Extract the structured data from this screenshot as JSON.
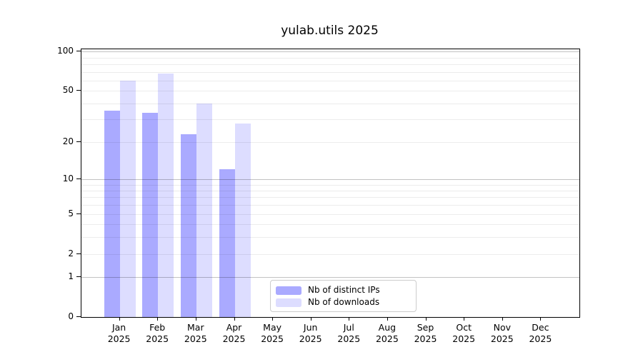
{
  "title": "yulab.utils 2025",
  "chart_data": {
    "type": "bar",
    "title": "yulab.utils 2025",
    "categories": [
      "Jan",
      "Feb",
      "Mar",
      "Apr",
      "May",
      "Jun",
      "Jul",
      "Aug",
      "Sep",
      "Oct",
      "Nov",
      "Dec"
    ],
    "year_label": "2025",
    "series": [
      {
        "name": "Nb of distinct IPs",
        "color": "#aaaaff",
        "values": [
          35,
          34,
          23,
          12,
          0,
          0,
          0,
          0,
          0,
          0,
          0,
          0
        ]
      },
      {
        "name": "Nb of downloads",
        "color": "#ddddff",
        "values": [
          60,
          68,
          40,
          28,
          0,
          0,
          0,
          0,
          0,
          0,
          0,
          0
        ]
      }
    ],
    "y_scale": "log10(value+1)",
    "y_ticks": [
      0,
      1,
      2,
      5,
      10,
      20,
      50,
      100
    ],
    "y_minor_gridlines": [
      1,
      2,
      3,
      4,
      5,
      6,
      7,
      8,
      9,
      10,
      20,
      30,
      40,
      50,
      60,
      70,
      80,
      90,
      100
    ],
    "y_major_gridlines": [
      1,
      10,
      100
    ],
    "ylim": [
      0,
      104
    ],
    "xlabel": "",
    "ylabel": "",
    "grid": true,
    "legend_position": "bottom-center"
  },
  "legend": {
    "items": [
      "Nb of distinct IPs",
      "Nb of downloads"
    ]
  }
}
